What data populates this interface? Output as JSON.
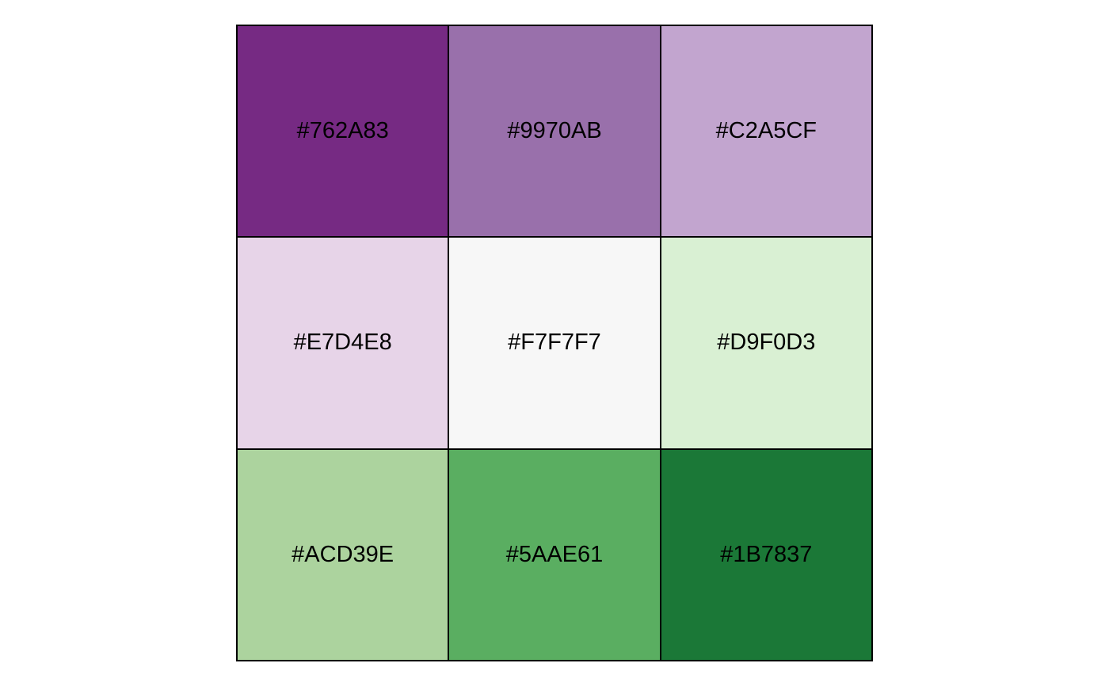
{
  "swatches": [
    {
      "label": "#762A83",
      "color": "#762A83"
    },
    {
      "label": "#9970AB",
      "color": "#9970AB"
    },
    {
      "label": "#C2A5CF",
      "color": "#C2A5CF"
    },
    {
      "label": "#E7D4E8",
      "color": "#E7D4E8"
    },
    {
      "label": "#F7F7F7",
      "color": "#F7F7F7"
    },
    {
      "label": "#D9F0D3",
      "color": "#D9F0D3"
    },
    {
      "label": "#ACD39E",
      "color": "#ACD39E"
    },
    {
      "label": "#5AAE61",
      "color": "#5AAE61"
    },
    {
      "label": "#1B7837",
      "color": "#1B7837"
    }
  ]
}
